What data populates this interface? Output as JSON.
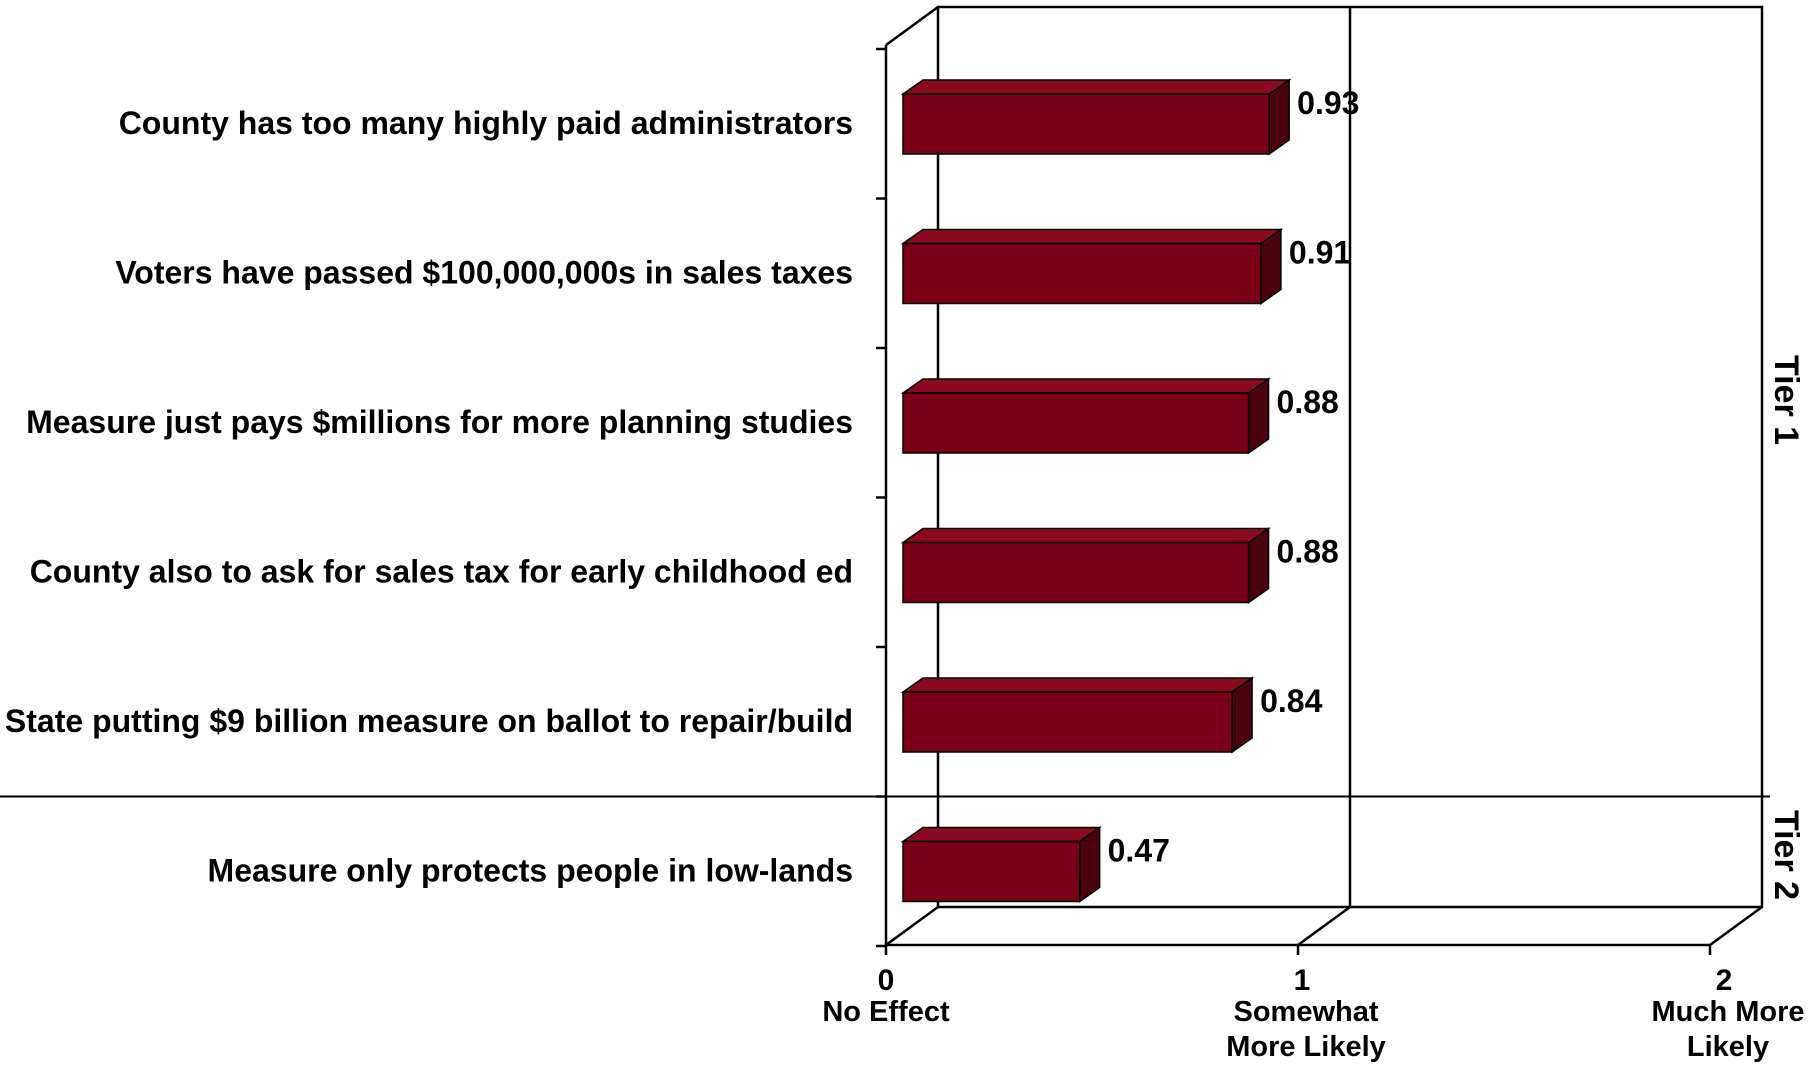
{
  "chart_data": {
    "type": "bar",
    "orientation": "horizontal",
    "style": "3d",
    "title": "",
    "xlabel": "",
    "ylabel": "",
    "xlim": [
      0,
      2
    ],
    "bar_color": "#7a0016",
    "categories": [
      "County has too many highly paid administrators",
      "Voters have passed $100,000,000s in sales taxes",
      "Measure just pays $millions for more planning studies",
      "County also to ask for sales tax for early childhood ed",
      "State putting $9 billion measure on ballot to repair/build",
      "Measure only protects people in low-lands"
    ],
    "values": [
      0.93,
      0.91,
      0.88,
      0.88,
      0.84,
      0.47
    ],
    "value_labels": [
      "0.93",
      "0.91",
      "0.88",
      "0.88",
      "0.84",
      "0.47"
    ],
    "x_ticks": [
      {
        "value": 0,
        "label": "0",
        "desc": [
          "No Effect"
        ]
      },
      {
        "value": 1,
        "label": "1",
        "desc": [
          "Somewhat",
          "More  Likely"
        ]
      },
      {
        "value": 2,
        "label": "2",
        "desc": [
          "Much More",
          "Likely"
        ]
      }
    ],
    "tiers": [
      {
        "label": "Tier 1",
        "categories": [
          0,
          1,
          2,
          3,
          4
        ]
      },
      {
        "label": "Tier 2",
        "categories": [
          5
        ]
      }
    ]
  }
}
